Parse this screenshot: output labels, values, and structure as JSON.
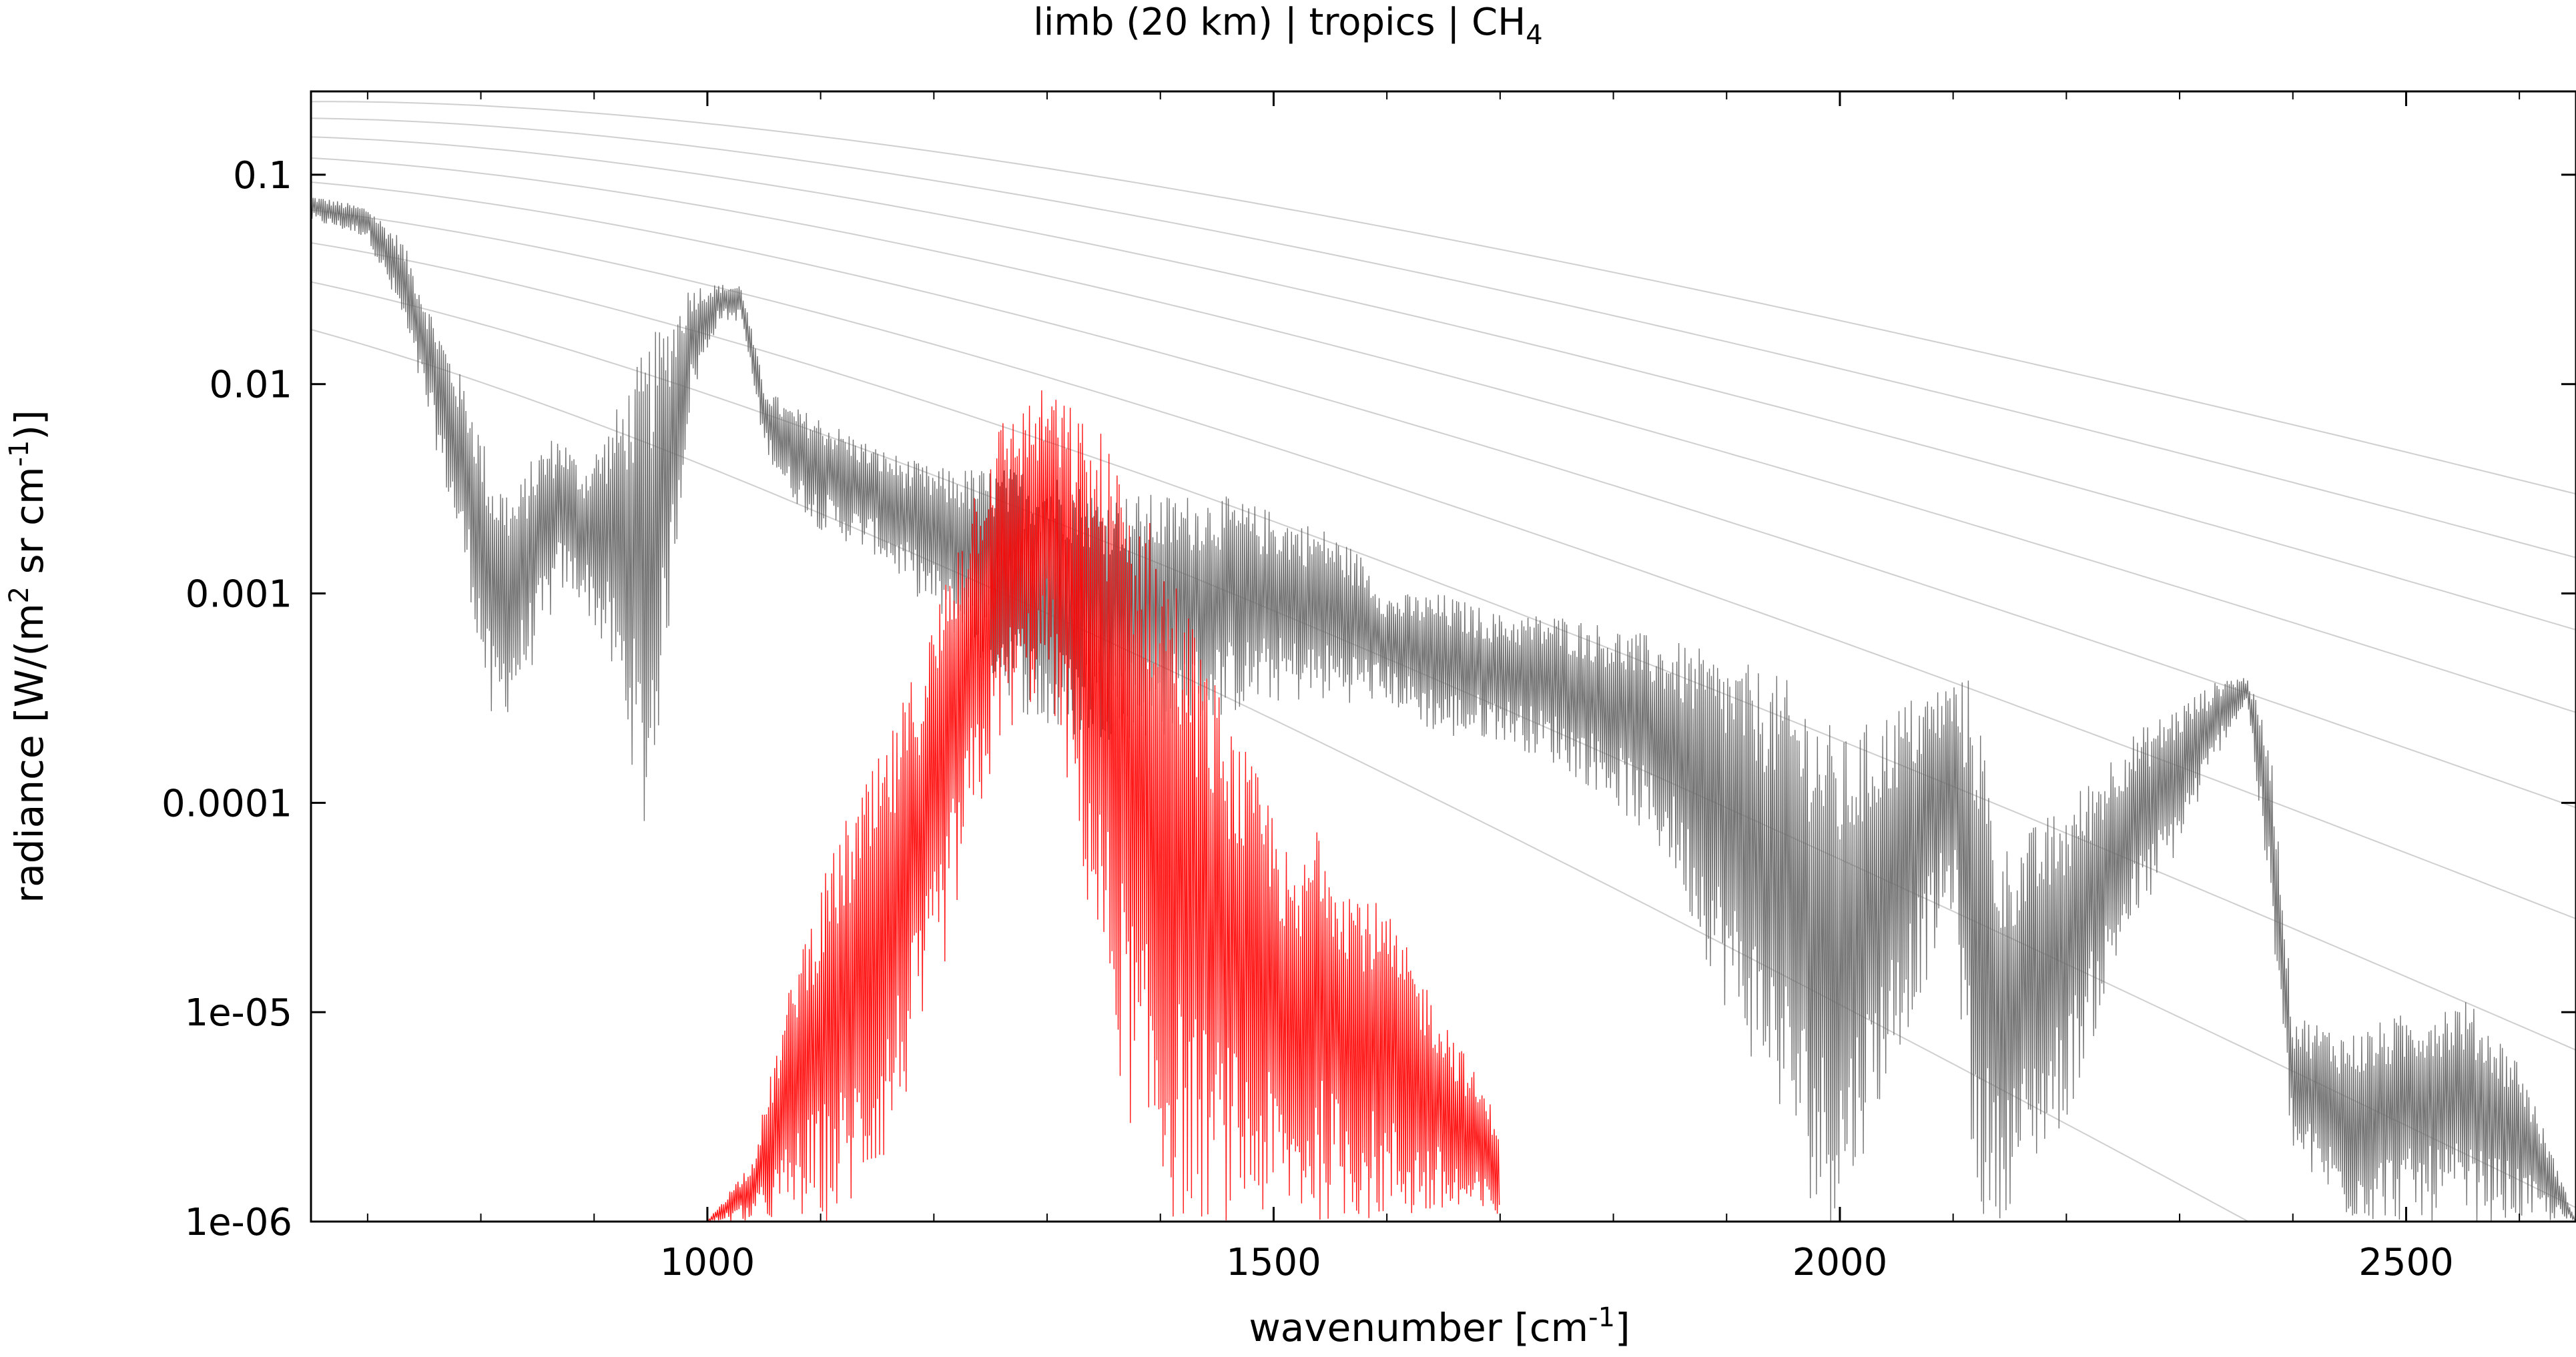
{
  "chart_data": {
    "type": "line",
    "title": "limb (20 km) | tropics | CH",
    "title_subscript": "4",
    "xlabel_main": "wavenumber [cm",
    "xlabel_sup": "-1",
    "xlabel_end": "]",
    "ylabel_parts": [
      "radiance [W/(m",
      "2",
      " sr cm",
      "-1",
      ")]"
    ],
    "xlim": [
      650,
      2650
    ],
    "ylim": [
      1e-06,
      0.25
    ],
    "y_scale": "log",
    "x_ticks": [
      1000,
      1500,
      2000,
      2500
    ],
    "x_tick_labels": [
      "1000",
      "1500",
      "2000",
      "2500"
    ],
    "y_ticks": [
      1e-06,
      1e-05,
      0.0001,
      0.001,
      0.01,
      0.1
    ],
    "y_tick_labels": [
      "1e-06",
      "1e-05",
      "0.0001",
      "0.001",
      "0.01",
      "0.1"
    ],
    "planck_reference_temperatures_K": [
      180,
      200,
      220,
      240,
      260,
      280,
      300,
      320,
      340
    ],
    "series": [
      {
        "color": "#666666",
        "x": [
          650,
          700,
          730,
          760,
          790,
          810,
          830,
          850,
          870,
          890,
          910,
          930,
          945,
          960,
          985,
          1010,
          1030,
          1050,
          1070,
          1100,
          1150,
          1200,
          1250,
          1300,
          1350,
          1400,
          1450,
          1500,
          1550,
          1580,
          1600,
          1650,
          1700,
          1750,
          1800,
          1850,
          1900,
          1950,
          1980,
          2000,
          2050,
          2100,
          2120,
          2140,
          2200,
          2250,
          2300,
          2340,
          2360,
          2380,
          2400,
          2450,
          2500,
          2550,
          2600,
          2650
        ],
        "envelope_top": [
          0.08,
          0.07,
          0.05,
          0.02,
          0.009,
          0.004,
          0.003,
          0.005,
          0.006,
          0.004,
          0.006,
          0.01,
          0.015,
          0.02,
          0.03,
          0.03,
          0.03,
          0.01,
          0.008,
          0.007,
          0.005,
          0.004,
          0.004,
          0.004,
          0.003,
          0.003,
          0.003,
          0.0025,
          0.002,
          0.0015,
          0.001,
          0.001,
          0.0008,
          0.0008,
          0.0007,
          0.0006,
          0.0005,
          0.0004,
          0.0003,
          0.0002,
          0.0003,
          0.0004,
          0.0004,
          6e-05,
          0.0001,
          0.0002,
          0.0003,
          0.0004,
          0.0004,
          0.0002,
          1e-05,
          8e-06,
          1e-05,
          1.2e-05,
          6e-06,
          1e-06
        ],
        "envelope_bottom": [
          0.06,
          0.05,
          0.02,
          0.005,
          0.001,
          0.0002,
          0.0003,
          0.0005,
          0.001,
          0.0009,
          0.0005,
          0.0002,
          6e-05,
          0.0003,
          0.008,
          0.02,
          0.02,
          0.005,
          0.003,
          0.002,
          0.0015,
          0.0008,
          0.0004,
          0.0002,
          0.0002,
          0.0002,
          0.00025,
          0.0003,
          0.0003,
          0.0003,
          0.0003,
          0.0002,
          0.0002,
          0.00015,
          0.0001,
          5e-05,
          1e-05,
          3e-06,
          1e-06,
          1e-06,
          6e-06,
          3e-05,
          1e-06,
          1e-06,
          3e-06,
          2e-05,
          6e-05,
          0.0002,
          0.0003,
          3e-05,
          2e-06,
          1e-06,
          1e-06,
          1e-06,
          1e-06,
          1e-06
        ]
      },
      {
        "color": "#ff0000",
        "x": [
          1000,
          1040,
          1080,
          1120,
          1160,
          1200,
          1230,
          1260,
          1290,
          1300,
          1320,
          1350,
          1380,
          1410,
          1440,
          1470,
          1500,
          1520,
          1540,
          1560,
          1600,
          1650,
          1700
        ],
        "envelope_top": [
          1e-06,
          2e-06,
          2e-05,
          8e-05,
          0.0002,
          0.0008,
          0.003,
          0.007,
          0.009,
          0.01,
          0.008,
          0.006,
          0.003,
          0.0015,
          0.0005,
          0.0002,
          0.0001,
          4e-05,
          0.0001,
          5e-05,
          3e-05,
          1e-05,
          3e-06
        ],
        "envelope_bottom": [
          1e-06,
          1e-06,
          1e-06,
          1e-06,
          2e-06,
          1e-05,
          5e-05,
          0.0002,
          0.0003,
          0.0004,
          0.0001,
          1e-05,
          2e-06,
          1e-06,
          1e-06,
          1e-06,
          1e-06,
          1e-06,
          1e-06,
          1e-06,
          1e-06,
          1e-06,
          1e-06
        ]
      }
    ],
    "grid": false
  }
}
